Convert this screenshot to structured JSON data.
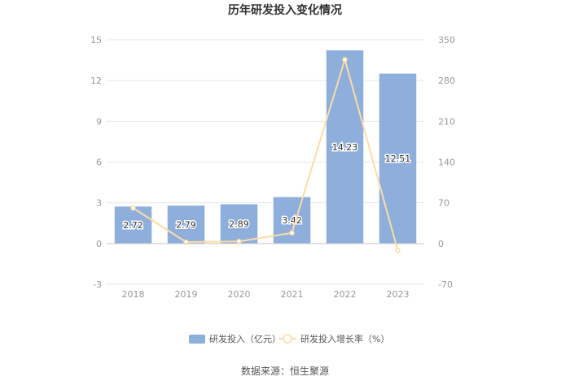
{
  "chart_data": {
    "type": "bar",
    "title": "历年研发投入变化情况",
    "categories": [
      "2018",
      "2019",
      "2020",
      "2021",
      "2022",
      "2023"
    ],
    "series": [
      {
        "name": "研发投入（亿元）",
        "type": "bar",
        "axis": "left",
        "values": [
          2.72,
          2.79,
          2.89,
          3.42,
          14.23,
          12.51
        ]
      },
      {
        "name": "研发投入增长率（%）",
        "type": "line",
        "axis": "right",
        "values": [
          61,
          2.6,
          3.6,
          18.3,
          316,
          -12
        ]
      }
    ],
    "y_left": {
      "ticks": [
        "-3",
        "0",
        "3",
        "6",
        "9",
        "12",
        "15"
      ],
      "ylim": [
        -3,
        15
      ]
    },
    "y_right": {
      "ticks": [
        "-70",
        "0",
        "70",
        "140",
        "210",
        "280",
        "350"
      ],
      "ylim": [
        -70,
        350
      ]
    },
    "grid": true,
    "legend": "bottom-center",
    "colors": {
      "bar": "#8EAEDC",
      "line": "#FCDCA6",
      "grid": "#E6E6E6"
    }
  },
  "source": "数据来源：恒生聚源"
}
